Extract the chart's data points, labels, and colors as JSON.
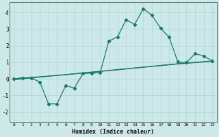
{
  "xlabel": "Humidex (Indice chaleur)",
  "bg_color": "#cce8e8",
  "line_color": "#1a7a6a",
  "grid_color": "#aad4d4",
  "xlim": [
    -0.5,
    23.5
  ],
  "ylim": [
    -2.6,
    4.6
  ],
  "x": [
    0,
    1,
    2,
    3,
    4,
    5,
    6,
    7,
    8,
    9,
    10,
    11,
    12,
    13,
    14,
    15,
    16,
    17,
    18,
    19,
    20,
    21,
    22,
    23
  ],
  "y_wavy": [
    0.0,
    0.07,
    0.05,
    -0.18,
    -1.5,
    -1.5,
    -0.4,
    -0.55,
    0.32,
    0.35,
    0.38,
    2.28,
    2.52,
    3.55,
    3.28,
    4.22,
    3.82,
    3.05,
    2.5,
    1.02,
    0.98,
    1.52,
    1.38,
    1.08
  ],
  "y_linear1": [
    0.0,
    0.05,
    0.09,
    0.13,
    0.17,
    0.22,
    0.26,
    0.31,
    0.36,
    0.41,
    0.46,
    0.51,
    0.56,
    0.61,
    0.66,
    0.71,
    0.76,
    0.81,
    0.86,
    0.91,
    0.96,
    1.0,
    1.04,
    1.08
  ],
  "y_linear2": [
    -0.05,
    0.01,
    0.06,
    0.11,
    0.16,
    0.21,
    0.25,
    0.3,
    0.35,
    0.4,
    0.45,
    0.5,
    0.55,
    0.6,
    0.65,
    0.7,
    0.75,
    0.8,
    0.85,
    0.9,
    0.94,
    0.98,
    1.02,
    1.06
  ],
  "yticks": [
    -2,
    -1,
    0,
    1,
    2,
    3,
    4
  ],
  "xticks": [
    0,
    1,
    2,
    3,
    4,
    5,
    6,
    7,
    8,
    9,
    10,
    11,
    12,
    13,
    14,
    15,
    16,
    17,
    18,
    19,
    20,
    21,
    22,
    23
  ]
}
